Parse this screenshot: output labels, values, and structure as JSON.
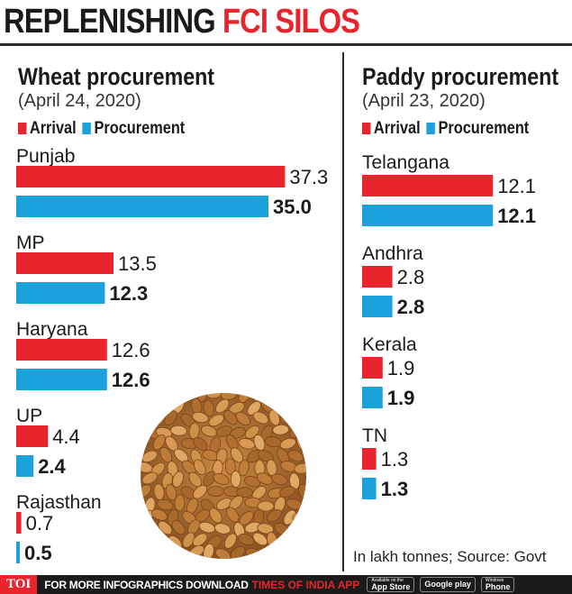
{
  "headline": {
    "part1": "REPLENISHING ",
    "part2": "FCI SILOS"
  },
  "colors": {
    "arrival": "#e8242c",
    "procurement": "#1ba1dc",
    "text": "#1a1a1a"
  },
  "chart_data": [
    {
      "type": "bar",
      "orientation": "horizontal",
      "title": "Wheat procurement",
      "subtitle": "(April 24, 2020)",
      "legend": [
        "Arrival",
        "Procurement"
      ],
      "categories": [
        "Punjab",
        "MP",
        "Haryana",
        "UP",
        "Rajasthan"
      ],
      "series": [
        {
          "name": "Arrival",
          "values": [
            37.3,
            13.5,
            12.6,
            4.4,
            0.7
          ],
          "labels": [
            "37.3",
            "13.5",
            "12.6",
            "4.4",
            "0.7"
          ]
        },
        {
          "name": "Procurement",
          "values": [
            35.0,
            12.3,
            12.6,
            2.4,
            0.5
          ],
          "labels": [
            "35.0",
            "12.3",
            "12.6",
            "2.4",
            "0.5"
          ]
        }
      ],
      "unit": "lakh tonnes"
    },
    {
      "type": "bar",
      "orientation": "horizontal",
      "title": "Paddy procurement",
      "subtitle": "(April 23, 2020)",
      "legend": [
        "Arrival",
        "Procurement"
      ],
      "categories": [
        "Telangana",
        "Andhra",
        "Kerala",
        "TN"
      ],
      "series": [
        {
          "name": "Arrival",
          "values": [
            12.1,
            2.8,
            1.9,
            1.3
          ],
          "labels": [
            "12.1",
            "2.8",
            "1.9",
            "1.3"
          ]
        },
        {
          "name": "Procurement",
          "values": [
            12.1,
            2.8,
            1.9,
            1.3
          ],
          "labels": [
            "12.1",
            "2.8",
            "1.9",
            "1.3"
          ]
        }
      ],
      "unit": "lakh tonnes"
    }
  ],
  "footnote": "In lakh tonnes; Source: Govt",
  "footer": {
    "logo": "TOI",
    "text": "FOR MORE  INFOGRAPHICS DOWNLOAD",
    "brand": "TIMES OF INDIA APP",
    "stores": [
      {
        "small": "Available on the",
        "big": "App Store"
      },
      {
        "small": "",
        "big": "Google play"
      },
      {
        "small": "Windows",
        "big": "Phone"
      }
    ]
  }
}
